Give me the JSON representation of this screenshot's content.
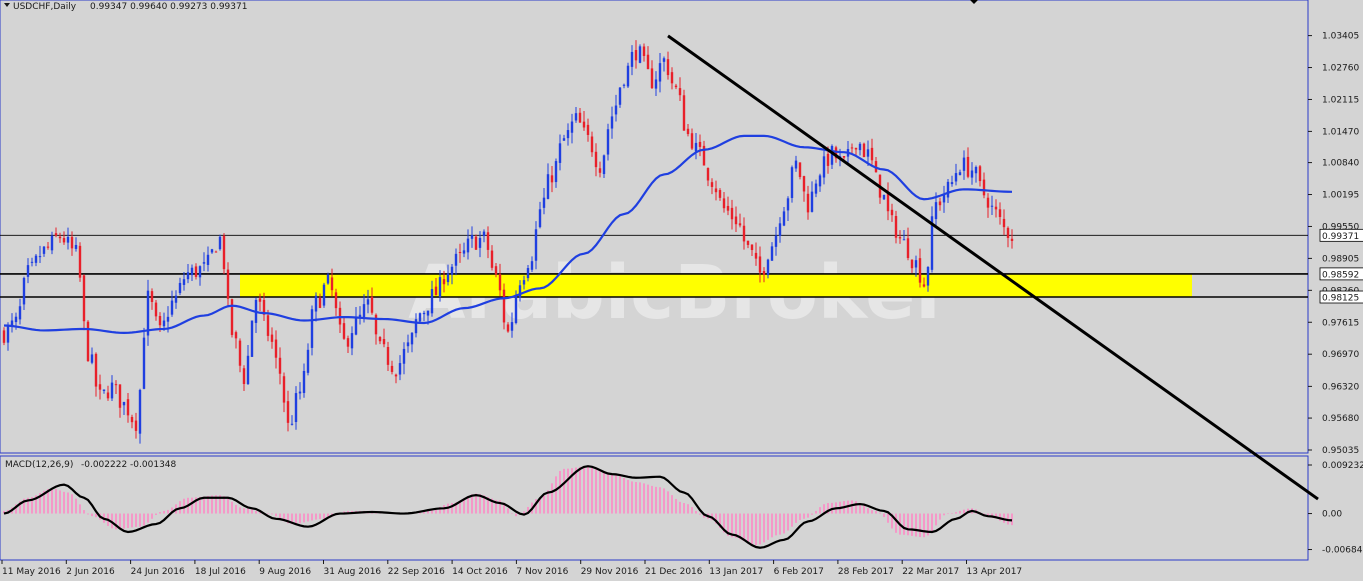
{
  "header": {
    "symbol": "USDCHF,Daily",
    "ohlc": "0.99347 0.99640 0.99273 0.99371"
  },
  "macd_header": {
    "label": "MACD(12,26,9)",
    "values": "-0.002222 -0.001348"
  },
  "watermark": "ArabicBroker",
  "colors": {
    "background": "#d4d4d4",
    "bull_candle": "#1f3fe0",
    "bear_candle": "#e8202a",
    "moving_average": "#1f3fe0",
    "trendline": "#000000",
    "zone": "#ffff00",
    "macd_histogram": "#f598c8",
    "macd_signal": "#000000",
    "axis_text": "#1a1a1a",
    "frame": "#2a3ac8"
  },
  "chart_data": [
    {
      "type": "candlestick",
      "title": "USDCHF,Daily",
      "ylim": [
        0.95035,
        1.0372
      ],
      "y_ticks": [
        "1.03405",
        "1.02760",
        "1.02115",
        "1.01470",
        "1.00840",
        "1.00195",
        "0.99550",
        "0.98905",
        "0.98260",
        "0.97615",
        "0.96970",
        "0.96320",
        "0.95680",
        "0.95035"
      ],
      "price_tags": [
        {
          "text": "0.99371",
          "value": 0.99371,
          "style": "current"
        },
        {
          "text": "0.98592",
          "value": 0.98592,
          "style": "line"
        },
        {
          "text": "0.98125",
          "value": 0.98125,
          "style": "line"
        }
      ],
      "x_labels": [
        "11 May 2016",
        "2 Jun 2016",
        "24 Jun 2016",
        "18 Jul 2016",
        "9 Aug 2016",
        "31 Aug 2016",
        "22 Sep 2016",
        "14 Oct 2016",
        "7 Nov 2016",
        "29 Nov 2016",
        "21 Dec 2016",
        "13 Jan 2017",
        "6 Feb 2017",
        "28 Feb 2017",
        "22 Mar 2017",
        "13 Apr 2017"
      ],
      "close_anchors": [
        [
          0,
          0.974
        ],
        [
          3,
          0.976
        ],
        [
          6,
          0.986
        ],
        [
          10,
          0.9905
        ],
        [
          14,
          0.9935
        ],
        [
          18,
          0.99
        ],
        [
          21,
          0.97
        ],
        [
          24,
          0.961
        ],
        [
          27,
          0.963
        ],
        [
          30,
          0.9595
        ],
        [
          33,
          0.956
        ],
        [
          36,
          0.981
        ],
        [
          39,
          0.974
        ],
        [
          42,
          0.98
        ],
        [
          46,
          0.986
        ],
        [
          50,
          0.987
        ],
        [
          54,
          0.993
        ],
        [
          57,
          0.974
        ],
        [
          60,
          0.965
        ],
        [
          63,
          0.981
        ],
        [
          66,
          0.974
        ],
        [
          69,
          0.966
        ],
        [
          71,
          0.955
        ],
        [
          74,
          0.962
        ],
        [
          78,
          0.98
        ],
        [
          81,
          0.984
        ],
        [
          85,
          0.972
        ],
        [
          88,
          0.976
        ],
        [
          91,
          0.9795
        ],
        [
          94,
          0.9705
        ],
        [
          98,
          0.967
        ],
        [
          101,
          0.971
        ],
        [
          104,
          0.978
        ],
        [
          108,
          0.982
        ],
        [
          111,
          0.987
        ],
        [
          114,
          0.989
        ],
        [
          117,
          0.9925
        ],
        [
          120,
          0.993
        ],
        [
          123,
          0.985
        ],
        [
          126,
          0.974
        ],
        [
          129,
          0.985
        ],
        [
          132,
          0.99
        ],
        [
          134,
          0.999
        ],
        [
          137,
          1.006
        ],
        [
          140,
          1.013
        ],
        [
          143,
          1.017
        ],
        [
          146,
          1.013
        ],
        [
          149,
          1.008
        ],
        [
          152,
          1.018
        ],
        [
          155,
          1.026
        ],
        [
          158,
          1.031
        ],
        [
          162,
          1.025
        ],
        [
          165,
          1.029
        ],
        [
          168,
          1.023
        ],
        [
          171,
          1.014
        ],
        [
          174,
          1.01
        ],
        [
          177,
          1.005
        ],
        [
          180,
          0.999
        ],
        [
          183,
          0.997
        ],
        [
          186,
          0.991
        ],
        [
          189,
          0.986
        ],
        [
          192,
          0.992
        ],
        [
          195,
          1.0
        ],
        [
          198,
          1.008
        ],
        [
          201,
          1.0
        ],
        [
          204,
          1.007
        ],
        [
          207,
          1.01
        ],
        [
          210,
          1.008
        ],
        [
          213,
          1.013
        ],
        [
          216,
          1.01
        ],
        [
          219,
          1.003
        ],
        [
          222,
          0.996
        ],
        [
          225,
          0.992
        ],
        [
          228,
          0.988
        ],
        [
          230,
          0.984
        ],
        [
          233,
          1.0
        ],
        [
          236,
          1.003
        ],
        [
          239,
          1.008
        ],
        [
          242,
          1.007
        ],
        [
          245,
          1.002
        ],
        [
          248,
          0.998
        ],
        [
          250,
          0.995
        ],
        [
          252,
          0.9937
        ]
      ],
      "moving_average_anchors": [
        [
          0,
          0.9755
        ],
        [
          10,
          0.9745
        ],
        [
          20,
          0.9748
        ],
        [
          30,
          0.974
        ],
        [
          40,
          0.9748
        ],
        [
          50,
          0.9775
        ],
        [
          57,
          0.9795
        ],
        [
          65,
          0.978
        ],
        [
          75,
          0.9765
        ],
        [
          85,
          0.9772
        ],
        [
          95,
          0.9768
        ],
        [
          105,
          0.976
        ],
        [
          115,
          0.979
        ],
        [
          125,
          0.981
        ],
        [
          134,
          0.983
        ],
        [
          145,
          0.99
        ],
        [
          155,
          0.998
        ],
        [
          165,
          1.006
        ],
        [
          175,
          1.011
        ],
        [
          185,
          1.0138
        ],
        [
          190,
          1.0138
        ],
        [
          200,
          1.0115
        ],
        [
          210,
          1.0105
        ],
        [
          220,
          1.007
        ],
        [
          230,
          1.001
        ],
        [
          240,
          1.003
        ],
        [
          252,
          1.0025
        ]
      ],
      "trendline": [
        [
          166,
          1.034
        ],
        [
          265,
          0.977
        ]
      ],
      "support_zone": {
        "from_index": 59,
        "to_index": 297,
        "low": 0.98125,
        "high": 0.98592
      }
    },
    {
      "type": "bar",
      "title": "MACD(12,26,9)",
      "ylim": [
        -0.0075,
        0.0098
      ],
      "y_ticks": [
        "0.009232",
        "0.00",
        "-0.006842"
      ],
      "main_anchors": [
        [
          0,
          0.0005
        ],
        [
          6,
          0.003
        ],
        [
          12,
          0.0048
        ],
        [
          16,
          0.004
        ],
        [
          22,
          -0.0005
        ],
        [
          28,
          -0.003
        ],
        [
          34,
          -0.0025
        ],
        [
          40,
          0.0005
        ],
        [
          46,
          0.003
        ],
        [
          54,
          0.0035
        ],
        [
          60,
          0.001
        ],
        [
          66,
          0.0
        ],
        [
          72,
          -0.002
        ],
        [
          80,
          -0.001
        ],
        [
          86,
          0.0005
        ],
        [
          92,
          0.0005
        ],
        [
          100,
          0.0
        ],
        [
          106,
          0.0005
        ],
        [
          112,
          0.002
        ],
        [
          118,
          0.0038
        ],
        [
          124,
          0.0025
        ],
        [
          128,
          -0.0005
        ],
        [
          134,
          0.003
        ],
        [
          140,
          0.0085
        ],
        [
          146,
          0.009
        ],
        [
          152,
          0.0075
        ],
        [
          158,
          0.006
        ],
        [
          164,
          0.005
        ],
        [
          170,
          0.002
        ],
        [
          176,
          -0.001
        ],
        [
          182,
          -0.0045
        ],
        [
          188,
          -0.006
        ],
        [
          194,
          -0.004
        ],
        [
          200,
          -0.001
        ],
        [
          206,
          0.002
        ],
        [
          212,
          0.0025
        ],
        [
          218,
          0.0005
        ],
        [
          224,
          -0.004
        ],
        [
          230,
          -0.0045
        ],
        [
          236,
          0.0
        ],
        [
          242,
          0.001
        ],
        [
          246,
          -0.0005
        ],
        [
          252,
          -0.0022
        ]
      ],
      "signal_anchors": [
        [
          0,
          0.0
        ],
        [
          6,
          0.0025
        ],
        [
          15,
          0.0055
        ],
        [
          20,
          0.003
        ],
        [
          25,
          -0.001
        ],
        [
          31,
          -0.0035
        ],
        [
          38,
          -0.002
        ],
        [
          44,
          0.001
        ],
        [
          50,
          0.003
        ],
        [
          56,
          0.003
        ],
        [
          62,
          0.001
        ],
        [
          68,
          -0.001
        ],
        [
          76,
          -0.0025
        ],
        [
          84,
          0.0
        ],
        [
          92,
          0.0003
        ],
        [
          100,
          0.0
        ],
        [
          110,
          0.001
        ],
        [
          118,
          0.0035
        ],
        [
          124,
          0.002
        ],
        [
          130,
          -0.0002
        ],
        [
          136,
          0.004
        ],
        [
          146,
          0.009
        ],
        [
          152,
          0.0075
        ],
        [
          158,
          0.0068
        ],
        [
          164,
          0.007
        ],
        [
          170,
          0.004
        ],
        [
          176,
          -0.0005
        ],
        [
          182,
          -0.004
        ],
        [
          189,
          -0.0065
        ],
        [
          195,
          -0.005
        ],
        [
          201,
          -0.0015
        ],
        [
          208,
          0.001
        ],
        [
          214,
          0.0018
        ],
        [
          220,
          0.0005
        ],
        [
          226,
          -0.003
        ],
        [
          232,
          -0.0035
        ],
        [
          238,
          -0.001
        ],
        [
          242,
          0.0005
        ],
        [
          246,
          -0.0005
        ],
        [
          252,
          -0.0013
        ]
      ]
    }
  ]
}
